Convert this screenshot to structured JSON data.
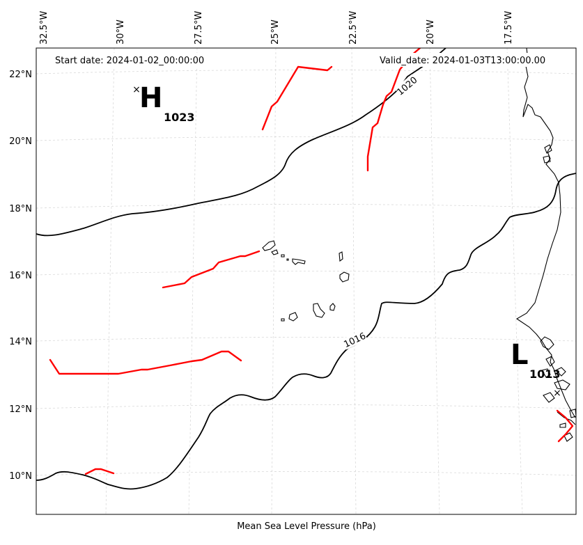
{
  "map": {
    "start_date": "Start date: 2024-01-02_00:00:00",
    "valid_date": "Valid_date: 2024-01-03T13:00:00.00",
    "caption": "Mean Sea Level Pressure (hPa)",
    "lon_ticks": [
      "32.5°W",
      "30°W",
      "27.5°W",
      "25°W",
      "22.5°W",
      "20°W",
      "17.5°W"
    ],
    "lat_ticks": [
      "22°N",
      "20°N",
      "18°N",
      "16°N",
      "14°N",
      "12°N",
      "10°N"
    ],
    "high": {
      "letter": "H",
      "value": "1023",
      "marker": "×"
    },
    "low": {
      "letter": "L",
      "value": "1013",
      "marker": "×"
    },
    "contour_labels": [
      "1020",
      "1016"
    ],
    "colors": {
      "isobar": "#000000",
      "front": "#ff0000",
      "grid": "#d9d9d9",
      "background": "#ffffff"
    }
  }
}
